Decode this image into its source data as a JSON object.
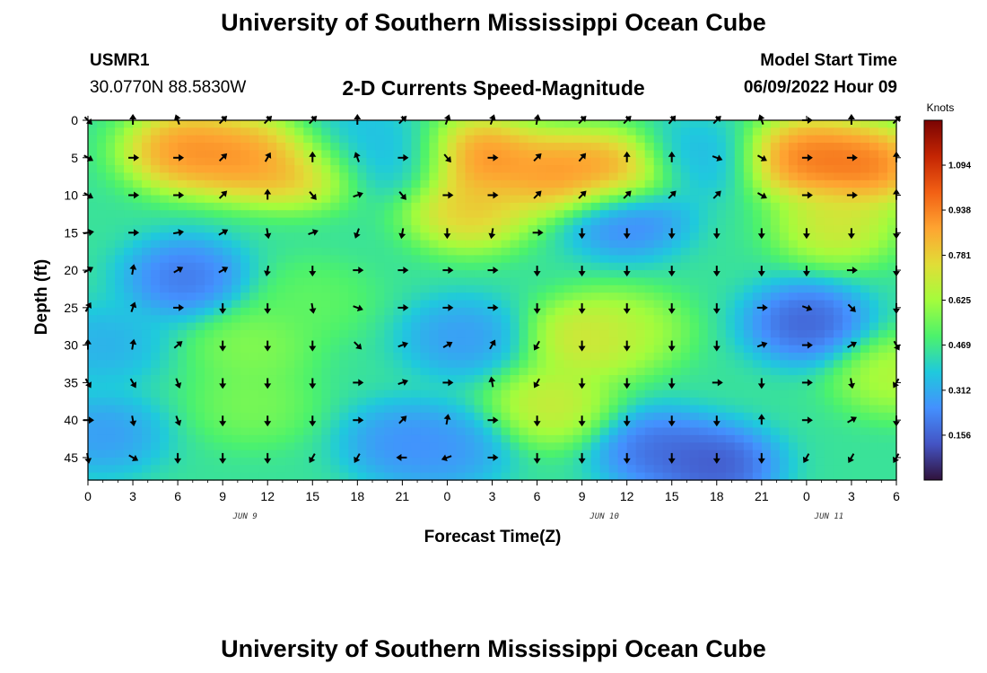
{
  "page": {
    "title": "University of Southern Mississippi Ocean Cube",
    "title_repeat": "University of Southern Mississippi Ocean Cube"
  },
  "station": {
    "id": "USMR1",
    "coords": "30.0770N  88.5830W"
  },
  "model": {
    "start_label": "Model Start Time",
    "start_value": "06/09/2022 Hour 09"
  },
  "chart_data": {
    "type": "heatmap",
    "title": "2-D Currents Speed-Magnitude",
    "xlabel": "Forecast Time(Z)",
    "ylabel": "Depth (ft)",
    "x_ticks": [
      "0",
      "3",
      "6",
      "9",
      "12",
      "15",
      "18",
      "21",
      "0",
      "3",
      "6",
      "9",
      "12",
      "15",
      "18",
      "21",
      "0",
      "3",
      "6"
    ],
    "x_day_labels": [
      {
        "label": "JUN 9",
        "tick_index": 3.5
      },
      {
        "label": "JUN 10",
        "tick_index": 11.5
      },
      {
        "label": "JUN 11",
        "tick_index": 16.5
      }
    ],
    "xlim_hours": [
      0,
      54
    ],
    "y_ticks": [
      "0",
      "5",
      "10",
      "15",
      "20",
      "25",
      "30",
      "35",
      "40",
      "45"
    ],
    "ylim": [
      0,
      48
    ],
    "y_inverted": true,
    "colorbar": {
      "unit": "Knots",
      "tick_labels": [
        "1.094",
        "0.938",
        "0.781",
        "0.625",
        "0.469",
        "0.312",
        "0.156"
      ],
      "tick_values": [
        1.094,
        0.938,
        0.781,
        0.625,
        0.469,
        0.312,
        0.156
      ],
      "range": [
        0,
        1.25
      ],
      "colors": [
        "#30123b",
        "#4454c4",
        "#4490fe",
        "#1fc9dd",
        "#4cf26c",
        "#a4fc3c",
        "#e1dd37",
        "#fea431",
        "#f26014",
        "#c42503",
        "#7a0403"
      ]
    },
    "speed_hotspots": [
      {
        "t": 6.5,
        "d": 4,
        "v": 1.05
      },
      {
        "t": 10.5,
        "d": 5,
        "v": 1.02
      },
      {
        "t": 14,
        "d": 6,
        "v": 0.95
      },
      {
        "t": 26,
        "d": 5,
        "v": 1.08
      },
      {
        "t": 31,
        "d": 7,
        "v": 1.02
      },
      {
        "t": 35,
        "d": 7,
        "v": 1.02
      },
      {
        "t": 25.5,
        "d": 12,
        "v": 0.9
      },
      {
        "t": 48,
        "d": 5,
        "v": 1.1
      },
      {
        "t": 52,
        "d": 6,
        "v": 1.1
      },
      {
        "t": 50,
        "d": 14,
        "v": 0.8
      },
      {
        "t": 11,
        "d": 30,
        "v": 0.62
      },
      {
        "t": 11,
        "d": 38,
        "v": 0.6
      },
      {
        "t": 15,
        "d": 24,
        "v": 0.55
      },
      {
        "t": 33.5,
        "d": 29,
        "v": 0.82
      },
      {
        "t": 31,
        "d": 38,
        "v": 0.78
      },
      {
        "t": 36,
        "d": 28,
        "v": 0.68
      },
      {
        "t": 54,
        "d": 34,
        "v": 0.72
      },
      {
        "t": 6.5,
        "d": 21,
        "v": 0.12
      },
      {
        "t": 36,
        "d": 13,
        "v": 0.14
      },
      {
        "t": 48,
        "d": 27,
        "v": 0.06
      },
      {
        "t": 42,
        "d": 46,
        "v": 0.04
      },
      {
        "t": 38,
        "d": 44,
        "v": 0.1
      },
      {
        "t": 17,
        "d": 3,
        "v": 0.3
      },
      {
        "t": 21,
        "d": 5,
        "v": 0.32
      },
      {
        "t": 40.5,
        "d": 5,
        "v": 0.3
      },
      {
        "t": 21,
        "d": 43,
        "v": 0.2
      },
      {
        "t": 24,
        "d": 44,
        "v": 0.22
      },
      {
        "t": 25,
        "d": 29,
        "v": 0.22
      },
      {
        "t": 1,
        "d": 42,
        "v": 0.22
      },
      {
        "t": 1,
        "d": 30,
        "v": 0.28
      }
    ],
    "background_speed": 0.45,
    "arrow_angles_deg": [
      [
        -45,
        90,
        110,
        45,
        45,
        45,
        90,
        45,
        70,
        70,
        80,
        45,
        45,
        50,
        45,
        110,
        0,
        90,
        45
      ],
      [
        -30,
        0,
        0,
        45,
        60,
        90,
        110,
        0,
        -50,
        0,
        45,
        50,
        90,
        90,
        -20,
        -30,
        0,
        0,
        90
      ],
      [
        -30,
        0,
        0,
        45,
        90,
        -50,
        20,
        -50,
        0,
        0,
        45,
        45,
        45,
        45,
        45,
        -30,
        0,
        0,
        90
      ],
      [
        10,
        0,
        10,
        30,
        -80,
        20,
        -110,
        -100,
        -90,
        -100,
        0,
        -90,
        -90,
        -90,
        -90,
        -90,
        -90,
        -90,
        -90
      ],
      [
        30,
        80,
        30,
        30,
        -100,
        -90,
        0,
        0,
        0,
        0,
        -90,
        -90,
        -90,
        -90,
        -90,
        -90,
        -90,
        0,
        -90
      ],
      [
        60,
        70,
        0,
        -90,
        -90,
        -80,
        -20,
        0,
        0,
        0,
        -90,
        -90,
        -90,
        -90,
        -90,
        0,
        -20,
        -45,
        -90
      ],
      [
        90,
        80,
        40,
        -90,
        -90,
        -90,
        -45,
        20,
        30,
        60,
        -120,
        -90,
        -90,
        -90,
        -90,
        20,
        0,
        30,
        -60
      ],
      [
        -60,
        -60,
        -70,
        -90,
        -90,
        -90,
        0,
        20,
        0,
        100,
        -120,
        -90,
        -90,
        -90,
        0,
        -90,
        0,
        -80,
        -120
      ],
      [
        0,
        -80,
        -70,
        -90,
        -90,
        -90,
        0,
        45,
        80,
        0,
        -90,
        -90,
        -90,
        -90,
        -90,
        90,
        0,
        30,
        -90
      ],
      [
        -80,
        -30,
        -90,
        -90,
        -90,
        -120,
        -120,
        -180,
        -160,
        0,
        -90,
        -90,
        -90,
        -90,
        -90,
        -90,
        -120,
        -120,
        -120
      ]
    ]
  }
}
